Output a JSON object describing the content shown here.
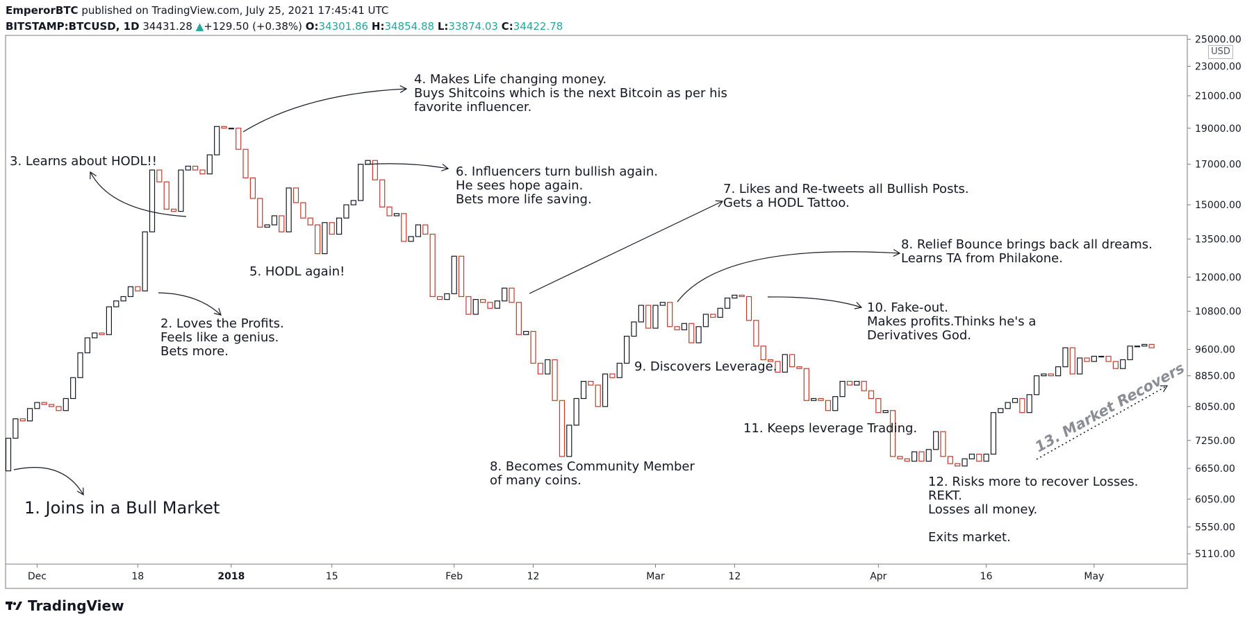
{
  "header": {
    "author": "EmperorBTC",
    "published_text": "published on TradingView.com, July 25, 2021 17:45:41 UTC",
    "symbol": "BITSTAMP:BTCUSD, 1D",
    "last_price": "34431.28",
    "change_arrow": "▲",
    "change": "+129.50 (+0.38%)",
    "o_label": "O:",
    "o_value": "34301.86",
    "h_label": "H:",
    "h_value": "34854.88",
    "l_label": "L:",
    "l_value": "33874.03",
    "c_label": "C:",
    "c_value": "34422.78"
  },
  "footer": {
    "brand": "TradingView",
    "logo_icon": "tradingview-logo-icon"
  },
  "currency_badge": "USD",
  "colors": {
    "up_border": "#131722",
    "down_border": "#c0392b",
    "teal": "#26a69a",
    "grid_border": "#787b86"
  },
  "annotations": [
    "1. Joins in a Bull Market",
    "2. Loves the Profits.\nFeels like a genius.\nBets more.",
    "3. Learns about HODL!!",
    "4. Makes Life changing money.\nBuys Shitcoins which is the next Bitcoin as per his\nfavorite influencer.",
    "5. HODL again!",
    "6. Influencers turn bullish again.\nHe sees hope again.\nBets more life saving.",
    "7. Likes and Re-tweets all Bullish Posts.\nGets a HODL Tattoo.",
    "8. Relief Bounce brings back all dreams.\nLearns TA from Philakone.",
    "8. Becomes Community Member\nof many coins.",
    "9. Discovers Leverage.",
    "10. Fake-out.\nMakes profits.Thinks he's a\nDerivatives God.",
    "11. Keeps leverage Trading.",
    "12. Risks more to recover Losses.\nREKT.\nLosses all money.\n\nExits market.",
    "13. Market Recovers"
  ],
  "chart_data": {
    "type": "candlestick",
    "y_scale": "log",
    "ylim": [
      4950,
      25300
    ],
    "y_ticks": [
      "25000.00",
      "23000.00",
      "21000.00",
      "19000.00",
      "17000.00",
      "15000.00",
      "13500.00",
      "12000.00",
      "10800.00",
      "9600.00",
      "8850.00",
      "8050.00",
      "7250.00",
      "6650.00",
      "6050.00",
      "5550.00",
      "5110.00"
    ],
    "x_ticks": [
      {
        "label": "Dec",
        "day": 4
      },
      {
        "label": "18",
        "day": 18
      },
      {
        "label": "2018",
        "day": 31
      },
      {
        "label": "15",
        "day": 45
      },
      {
        "label": "Feb",
        "day": 62
      },
      {
        "label": "12",
        "day": 73
      },
      {
        "label": "Mar",
        "day": 90
      },
      {
        "label": "12",
        "day": 101
      },
      {
        "label": "Apr",
        "day": 121
      },
      {
        "label": "16",
        "day": 136
      },
      {
        "label": "May",
        "day": 151
      }
    ],
    "first_day": "2017-11-09",
    "candles": [
      [
        6600,
        7300
      ],
      [
        7300,
        7750
      ],
      [
        7750,
        7700
      ],
      [
        7700,
        8000
      ],
      [
        8000,
        8150
      ],
      [
        8150,
        8100
      ],
      [
        8100,
        8050
      ],
      [
        8050,
        7950
      ],
      [
        7950,
        8250
      ],
      [
        8250,
        8800
      ],
      [
        8800,
        9500
      ],
      [
        9500,
        9950
      ],
      [
        9950,
        10100
      ],
      [
        10100,
        10050
      ],
      [
        10050,
        10950
      ],
      [
        10950,
        11150
      ],
      [
        11150,
        11300
      ],
      [
        11300,
        11650
      ],
      [
        11650,
        11500
      ],
      [
        11500,
        13800
      ],
      [
        13800,
        16700
      ],
      [
        16700,
        16100
      ],
      [
        16100,
        14800
      ],
      [
        14800,
        14700
      ],
      [
        14700,
        16700
      ],
      [
        16700,
        16900
      ],
      [
        16900,
        16700
      ],
      [
        16700,
        16500
      ],
      [
        16500,
        17500
      ],
      [
        17500,
        19100
      ],
      [
        19100,
        19000
      ],
      [
        19000,
        19000
      ],
      [
        19000,
        17800
      ],
      [
        17800,
        16300
      ],
      [
        16300,
        15300
      ],
      [
        15300,
        14000
      ],
      [
        14000,
        14100
      ],
      [
        14100,
        14500
      ],
      [
        14500,
        13800
      ],
      [
        13800,
        15800
      ],
      [
        15800,
        15100
      ],
      [
        15100,
        14400
      ],
      [
        14400,
        14100
      ],
      [
        14100,
        12900
      ],
      [
        12900,
        14200
      ],
      [
        14200,
        13700
      ],
      [
        13700,
        14400
      ],
      [
        14400,
        15000
      ],
      [
        15000,
        15200
      ],
      [
        15200,
        17000
      ],
      [
        17000,
        17200
      ],
      [
        17200,
        16200
      ],
      [
        16200,
        14900
      ],
      [
        14900,
        14500
      ],
      [
        14500,
        14600
      ],
      [
        14600,
        13400
      ],
      [
        13400,
        13600
      ],
      [
        13600,
        14100
      ],
      [
        14100,
        13700
      ],
      [
        13700,
        11300
      ],
      [
        11300,
        11200
      ],
      [
        11200,
        11400
      ],
      [
        11400,
        12800
      ],
      [
        12800,
        11300
      ],
      [
        11300,
        10700
      ],
      [
        10700,
        11200
      ],
      [
        11200,
        11100
      ],
      [
        11100,
        10900
      ],
      [
        10900,
        11150
      ],
      [
        11150,
        11600
      ],
      [
        11600,
        11100
      ],
      [
        11100,
        10050
      ],
      [
        10050,
        10150
      ],
      [
        10150,
        9200
      ],
      [
        9200,
        8900
      ],
      [
        8900,
        9300
      ],
      [
        9300,
        8200
      ],
      [
        8200,
        6900
      ],
      [
        6900,
        7600
      ],
      [
        7600,
        8250
      ],
      [
        8250,
        8700
      ],
      [
        8700,
        8600
      ],
      [
        8600,
        8050
      ],
      [
        8050,
        8900
      ],
      [
        8900,
        8800
      ],
      [
        8800,
        9200
      ],
      [
        9200,
        10000
      ],
      [
        10000,
        10450
      ],
      [
        10450,
        11000
      ],
      [
        11000,
        10250
      ],
      [
        10250,
        11000
      ],
      [
        11000,
        11100
      ],
      [
        11100,
        10300
      ],
      [
        10300,
        10200
      ],
      [
        10200,
        10400
      ],
      [
        10400,
        9800
      ],
      [
        9800,
        10300
      ],
      [
        10300,
        10700
      ],
      [
        10700,
        10600
      ],
      [
        10600,
        10900
      ],
      [
        10900,
        11250
      ],
      [
        11250,
        11350
      ],
      [
        11350,
        11300
      ],
      [
        11300,
        10500
      ],
      [
        10500,
        9700
      ],
      [
        9700,
        9300
      ],
      [
        9300,
        9250
      ],
      [
        9250,
        8950
      ],
      [
        8950,
        9450
      ],
      [
        9450,
        9100
      ],
      [
        9100,
        9050
      ],
      [
        9050,
        8200
      ],
      [
        8200,
        8250
      ],
      [
        8250,
        8200
      ],
      [
        8200,
        7950
      ],
      [
        7950,
        8300
      ],
      [
        8300,
        8700
      ],
      [
        8700,
        8600
      ],
      [
        8600,
        8700
      ],
      [
        8700,
        8450
      ],
      [
        8450,
        8250
      ],
      [
        8250,
        7900
      ],
      [
        7900,
        7950
      ],
      [
        7950,
        6900
      ],
      [
        6900,
        6850
      ],
      [
        6850,
        6800
      ],
      [
        6800,
        7000
      ],
      [
        7000,
        6800
      ],
      [
        6800,
        7050
      ],
      [
        7050,
        7450
      ],
      [
        7450,
        6900
      ],
      [
        6900,
        6750
      ],
      [
        6750,
        6700
      ],
      [
        6700,
        6850
      ],
      [
        6850,
        6950
      ],
      [
        6950,
        6800
      ],
      [
        6800,
        6950
      ],
      [
        6950,
        7900
      ],
      [
        7900,
        8000
      ],
      [
        8000,
        8150
      ],
      [
        8150,
        8250
      ],
      [
        8250,
        7900
      ],
      [
        7900,
        8350
      ],
      [
        8350,
        8850
      ],
      [
        8850,
        8900
      ],
      [
        8900,
        8850
      ],
      [
        8850,
        9100
      ],
      [
        9100,
        9650
      ],
      [
        9650,
        8900
      ],
      [
        8900,
        9350
      ],
      [
        9350,
        9250
      ],
      [
        9250,
        9400
      ],
      [
        9400,
        9400
      ],
      [
        9400,
        9250
      ],
      [
        9250,
        9050
      ],
      [
        9050,
        9300
      ],
      [
        9300,
        9700
      ],
      [
        9700,
        9700
      ],
      [
        9700,
        9750
      ],
      [
        9750,
        9650
      ]
    ]
  }
}
